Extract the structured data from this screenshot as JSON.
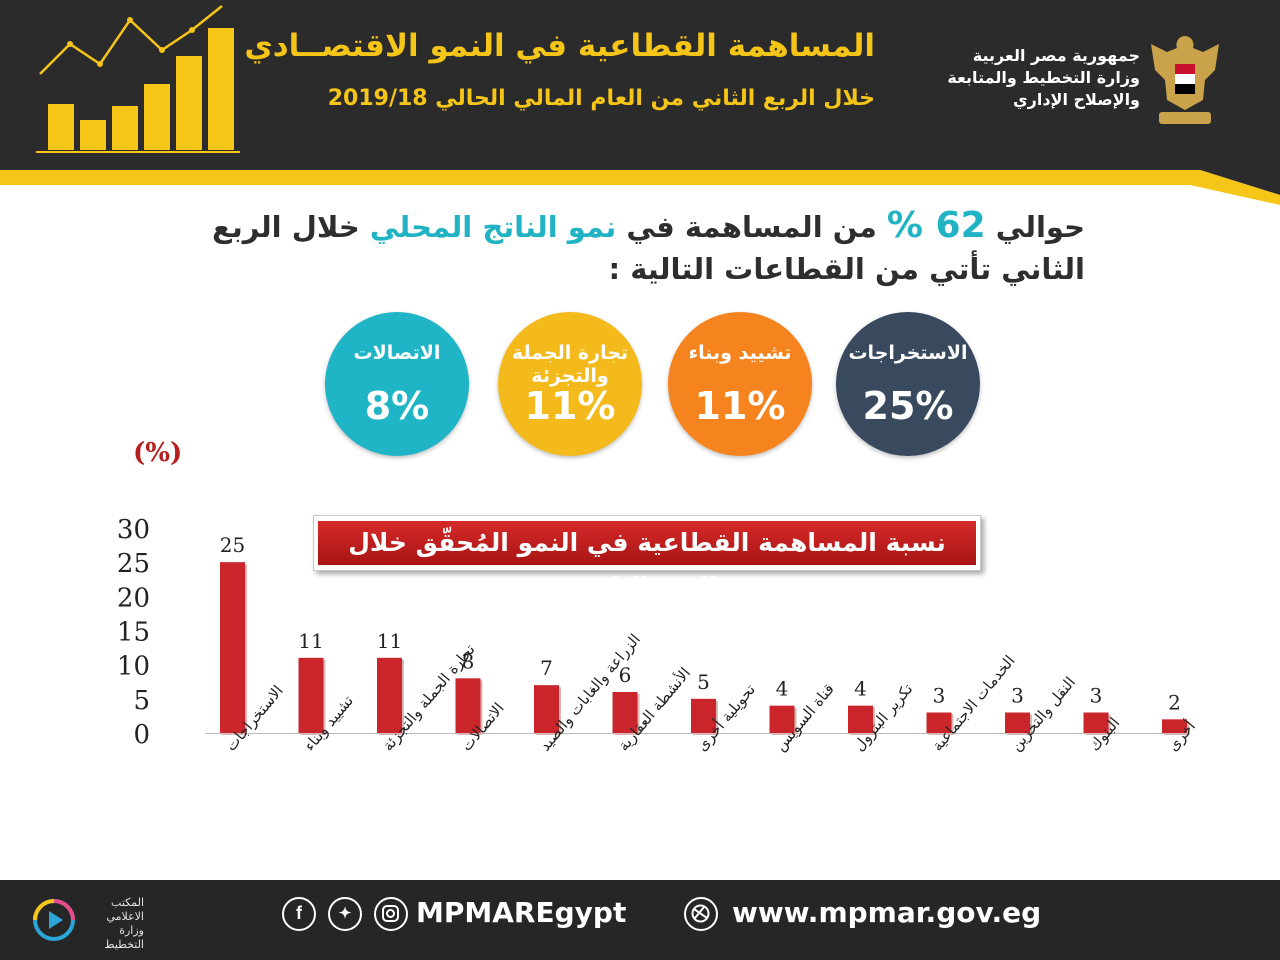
{
  "header": {
    "title": "المساهمة القطاعية في النمو الاقتصــادي",
    "subtitle": "خلال الربع الثاني من العام المالي الحالي 2019/18",
    "ministry_line1": "جمهورية مصر العربية",
    "ministry_line2": "وزارة التخطيط والمتابعة",
    "ministry_line3": "والإصلاح الإداري",
    "logo_icon": "eagle-emblem-icon",
    "growth_icon": "growth-bar-chart-icon"
  },
  "intro": {
    "part1": "حوالي",
    "percent": "62 %",
    "part2": "من المساهمة في",
    "highlight": "نمو الناتج المحلي",
    "part3": "خلال الربع الثاني تأتي من القطاعات التالية :"
  },
  "circles": [
    {
      "label": "الاستخراجات",
      "value": "25%",
      "color": "#3a4a5e"
    },
    {
      "label": "تشييد وبناء",
      "value": "11%",
      "color": "#f5841f"
    },
    {
      "label": "تجارة الجملة والتجزئة",
      "value": "11%",
      "color": "#f4b91a"
    },
    {
      "label": "الاتصالات",
      "value": "8%",
      "color": "#1fb5c6"
    }
  ],
  "chart_data": {
    "type": "bar",
    "title": "نسبة المساهمة القطاعية في النمو المُحقّق خلال الربع الثاني",
    "ylabel": "(%)",
    "ylim": [
      0,
      30
    ],
    "yticks": [
      0,
      5,
      10,
      15,
      20,
      25,
      30
    ],
    "categories": [
      "الاستخراجات",
      "تشييد وبناء",
      "تجارة الجملة والتجزئة",
      "الاتصالات",
      "الزراعة والغابات والصيد",
      "الأنشطة العقارية",
      "تحويلية أخرى",
      "قناة السويس",
      "تكرير البترول",
      "الخدمات الاجتماعية",
      "النقل والتخزين",
      "البنوك",
      "أخرى"
    ],
    "values": [
      25,
      11,
      11,
      8,
      7,
      6,
      5,
      4,
      4,
      3,
      3,
      3,
      2
    ],
    "bar_color": "#c9252b"
  },
  "footer": {
    "office_line1": "المكتب الاعلامي",
    "office_line2": "وزارة التخطيط",
    "social_handle": "MPMAREgypt",
    "website": "www.mpmar.gov.eg",
    "icons": [
      "facebook-icon",
      "twitter-icon",
      "instagram-icon",
      "web-icon"
    ]
  }
}
